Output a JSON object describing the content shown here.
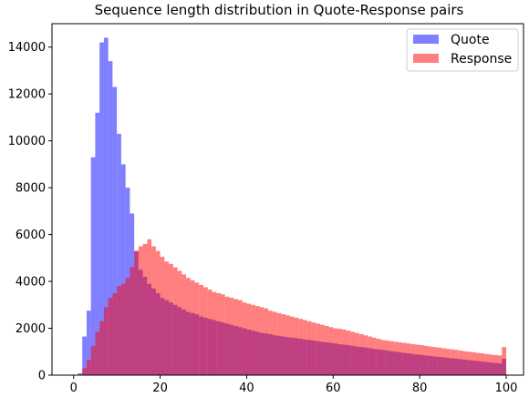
{
  "chart_data": {
    "type": "bar",
    "title": "Sequence length distribution in Quote-Response pairs",
    "xlabel": "",
    "ylabel": "",
    "xlim": [
      -5,
      104
    ],
    "ylim": [
      0,
      15000
    ],
    "x_ticks": [
      0,
      20,
      40,
      60,
      80,
      100
    ],
    "y_ticks": [
      0,
      2000,
      4000,
      6000,
      8000,
      10000,
      12000,
      14000
    ],
    "x_tick_labels": [
      "0",
      "20",
      "40",
      "60",
      "80",
      "100"
    ],
    "y_tick_labels": [
      "0",
      "2000",
      "4000",
      "6000",
      "8000",
      "10000",
      "12000",
      "14000"
    ],
    "grid": false,
    "legend_position": "top-right",
    "bin_start": 0,
    "bin_width": 1,
    "series": [
      {
        "name": "Quote",
        "color": "#0000ff",
        "opacity": 0.5,
        "values": [
          0,
          80,
          1650,
          2750,
          9300,
          11200,
          14200,
          14400,
          13400,
          12300,
          10300,
          9000,
          8000,
          6900,
          5300,
          4500,
          4200,
          3900,
          3700,
          3500,
          3300,
          3200,
          3100,
          3000,
          2900,
          2800,
          2700,
          2650,
          2600,
          2500,
          2450,
          2400,
          2350,
          2300,
          2250,
          2200,
          2150,
          2100,
          2050,
          2000,
          1950,
          1900,
          1850,
          1800,
          1780,
          1750,
          1700,
          1680,
          1650,
          1620,
          1600,
          1580,
          1550,
          1520,
          1500,
          1480,
          1450,
          1420,
          1400,
          1380,
          1350,
          1320,
          1300,
          1280,
          1250,
          1220,
          1200,
          1180,
          1150,
          1120,
          1100,
          1080,
          1050,
          1020,
          1000,
          980,
          950,
          930,
          900,
          880,
          860,
          840,
          820,
          800,
          780,
          760,
          740,
          720,
          700,
          680,
          660,
          640,
          620,
          600,
          580,
          560,
          540,
          520,
          500,
          700
        ]
      },
      {
        "name": "Response",
        "color": "#ff0000",
        "opacity": 0.5,
        "values": [
          0,
          0,
          300,
          650,
          1250,
          1850,
          2300,
          2900,
          3300,
          3500,
          3800,
          3900,
          4150,
          4600,
          5300,
          5500,
          5600,
          5800,
          5500,
          5300,
          5050,
          4850,
          4750,
          4600,
          4450,
          4300,
          4150,
          4050,
          3950,
          3850,
          3750,
          3650,
          3550,
          3500,
          3450,
          3350,
          3300,
          3250,
          3200,
          3100,
          3050,
          3000,
          2950,
          2900,
          2850,
          2750,
          2700,
          2650,
          2600,
          2550,
          2500,
          2450,
          2400,
          2350,
          2300,
          2250,
          2200,
          2150,
          2100,
          2050,
          2000,
          1980,
          1950,
          1900,
          1850,
          1800,
          1750,
          1700,
          1650,
          1600,
          1550,
          1500,
          1480,
          1450,
          1420,
          1400,
          1380,
          1350,
          1320,
          1300,
          1280,
          1250,
          1220,
          1200,
          1180,
          1150,
          1120,
          1100,
          1080,
          1050,
          1020,
          1000,
          980,
          950,
          930,
          900,
          880,
          860,
          840,
          1200
        ]
      }
    ]
  }
}
